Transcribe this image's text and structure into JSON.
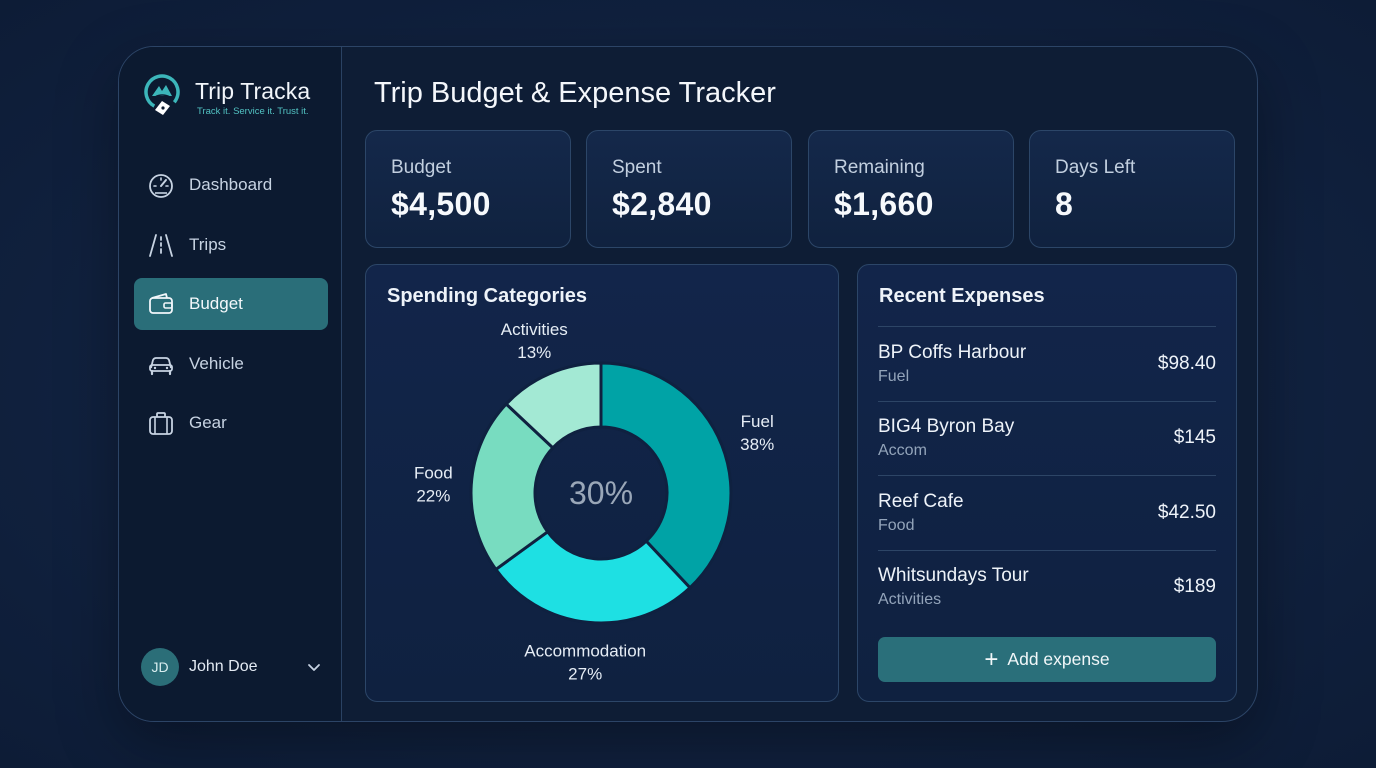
{
  "app": {
    "name": "Trip Tracka",
    "tagline": "Track it. Service it. Trust it."
  },
  "sidebar": {
    "items": [
      {
        "label": "Dashboard",
        "icon": "speedometer-icon",
        "active": false
      },
      {
        "label": "Trips",
        "icon": "road-icon",
        "active": false
      },
      {
        "label": "Budget",
        "icon": "wallet-icon",
        "active": true
      },
      {
        "label": "Vehicle",
        "icon": "car-icon",
        "active": false
      },
      {
        "label": "Gear",
        "icon": "luggage-icon",
        "active": false
      }
    ]
  },
  "user": {
    "initials": "JD",
    "name": "John Doe"
  },
  "header": {
    "title": "Trip Budget & Expense Tracker"
  },
  "stats": [
    {
      "label": "Budget",
      "value": "$4,500"
    },
    {
      "label": "Spent",
      "value": "$2,840"
    },
    {
      "label": "Remaining",
      "value": "$1,660"
    },
    {
      "label": "Days Left",
      "value": "8"
    }
  ],
  "spending": {
    "title": "Spending Categories",
    "center_label": "30%"
  },
  "chart_data": {
    "type": "pie",
    "title": "Spending Categories",
    "center_label": "30%",
    "slices": [
      {
        "name": "Fuel",
        "value": 38,
        "label": "38%",
        "color": "#00a3a6"
      },
      {
        "name": "Accommodation",
        "value": 27,
        "label": "27%",
        "color": "#1ee0e3"
      },
      {
        "name": "Food",
        "value": 22,
        "label": "22%",
        "color": "#78dcc0"
      },
      {
        "name": "Activities",
        "value": 13,
        "label": "13%",
        "color": "#a3e9d4"
      }
    ]
  },
  "recent": {
    "title": "Recent Expenses",
    "items": [
      {
        "name": "BP Coffs Harbour",
        "category": "Fuel",
        "amount": "$98.40"
      },
      {
        "name": "BIG4 Byron Bay",
        "category": "Accom",
        "amount": "$145"
      },
      {
        "name": "Reef Cafe",
        "category": "Food",
        "amount": "$42.50"
      },
      {
        "name": "Whitsundays Tour",
        "category": "Activities",
        "amount": "$189"
      }
    ],
    "add_label": "Add expense"
  },
  "colors": {
    "accent": "#2a6f7a",
    "background": "#112240",
    "panel": "#12254a"
  }
}
